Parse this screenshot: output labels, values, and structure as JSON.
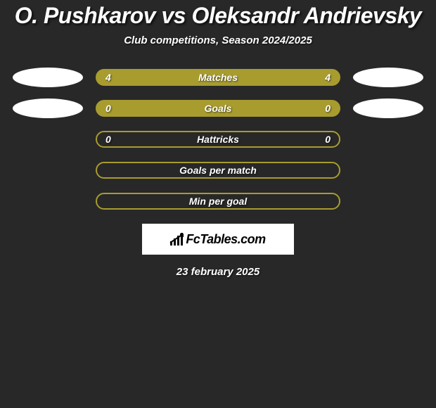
{
  "title": "O. Pushkarov vs Oleksandr Andrievsky",
  "subtitle": "Club competitions, Season 2024/2025",
  "date": "23 february 2025",
  "logo_text": "FcTables.com",
  "background_color": "#282828",
  "text_color": "#ffffff",
  "ellipse_color": "#ffffff",
  "stats": [
    {
      "label": "Matches",
      "left_value": "4",
      "right_value": "4",
      "fill_color": "#a89c2f",
      "border_color": "#a89c2f",
      "show_ellipses": true
    },
    {
      "label": "Goals",
      "left_value": "0",
      "right_value": "0",
      "fill_color": "#a89c2f",
      "border_color": "#a89c2f",
      "show_ellipses": true
    },
    {
      "label": "Hattricks",
      "left_value": "0",
      "right_value": "0",
      "fill_color": "transparent",
      "border_color": "#a89c2f",
      "show_ellipses": false
    },
    {
      "label": "Goals per match",
      "left_value": "",
      "right_value": "",
      "fill_color": "transparent",
      "border_color": "#a89c2f",
      "show_ellipses": false
    },
    {
      "label": "Min per goal",
      "left_value": "",
      "right_value": "",
      "fill_color": "transparent",
      "border_color": "#a89c2f",
      "show_ellipses": false
    }
  ]
}
